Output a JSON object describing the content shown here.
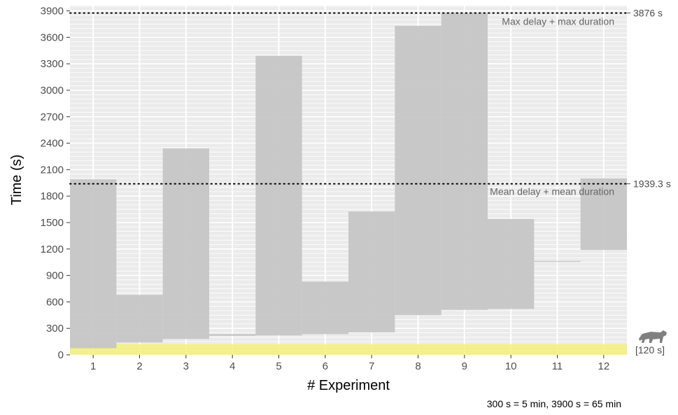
{
  "chart_data": {
    "type": "bar",
    "xlabel": "# Experiment",
    "ylabel": "Time (s)",
    "ylim": [
      0,
      3960
    ],
    "yticks": [
      0,
      300,
      600,
      900,
      1200,
      1500,
      1800,
      2100,
      2400,
      2700,
      3000,
      3300,
      3600,
      3900
    ],
    "categories": [
      "1",
      "2",
      "3",
      "4",
      "5",
      "6",
      "7",
      "8",
      "9",
      "10",
      "11",
      "12"
    ],
    "ranges": [
      {
        "start": 75,
        "end": 1990
      },
      {
        "start": 140,
        "end": 680
      },
      {
        "start": 180,
        "end": 2340
      },
      {
        "start": 215,
        "end": 235
      },
      {
        "start": 220,
        "end": 3390
      },
      {
        "start": 235,
        "end": 830
      },
      {
        "start": 255,
        "end": 1625
      },
      {
        "start": 450,
        "end": 3730
      },
      {
        "start": 510,
        "end": 3876
      },
      {
        "start": 520,
        "end": 1540
      },
      {
        "start": 1055,
        "end": 1065
      },
      {
        "start": 1190,
        "end": 2000
      }
    ],
    "reference_lines": [
      {
        "value": 3876,
        "label": "Max delay + max duration",
        "side_label": "3876 s"
      },
      {
        "value": 1939.3,
        "label": "Mean delay + mean duration",
        "side_label": "1939.3 s"
      }
    ],
    "highlight_band": {
      "from": 0,
      "to": 120,
      "color": "#f5f07a",
      "label": "[120 s]",
      "icon": "tiger-icon"
    },
    "footnote": "300 s = 5 min, 3900 s = 65 min",
    "colors": {
      "panel": "#ebebeb",
      "grid": "#ffffff",
      "bars": "#c4c4c4",
      "text": "#4d4d4d",
      "annotation": "#666666",
      "icon": "#808080"
    },
    "grid": true
  }
}
